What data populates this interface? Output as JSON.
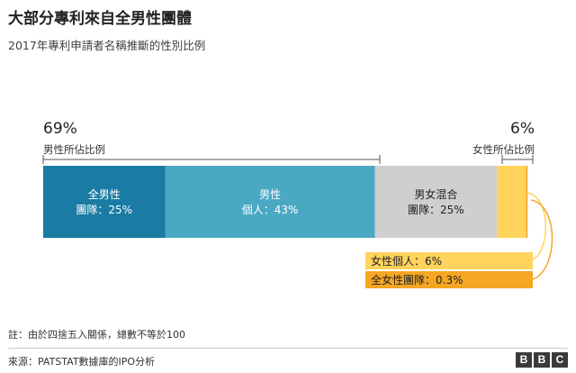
{
  "title": "大部分專利來自全男性團體",
  "subtitle": "2017年專利申請者名稱推斷的性別比例",
  "note": "註：由於四捨五入關係，總數不等於100",
  "source": "來源：PATSTAT數據庫的IPO分析",
  "logo": [
    "B",
    "B",
    "C"
  ],
  "chart_data": {
    "type": "bar",
    "orientation": "stacked-horizontal",
    "segments": [
      {
        "label": "全男性",
        "sublabel": "團隊：25%",
        "value": 25,
        "color": "#1a7ba4"
      },
      {
        "label": "男性",
        "sublabel": "個人：43%",
        "value": 43,
        "color": "#4ba8c2"
      },
      {
        "label": "男女混合",
        "sublabel": "團隊：25%",
        "value": 25,
        "color": "#cfcfcf"
      },
      {
        "label": "女性個人",
        "value_label": "6%",
        "value": 6,
        "color": "#ffd35c"
      },
      {
        "label": "全女性團隊",
        "value_label": "0.3%",
        "value": 0.3,
        "color": "#f5a623"
      }
    ],
    "groups": [
      {
        "value_label": "69%",
        "label": "男性所佔比例",
        "side": "left"
      },
      {
        "value_label": "6%",
        "label": "女性所佔比例",
        "side": "right"
      }
    ]
  }
}
